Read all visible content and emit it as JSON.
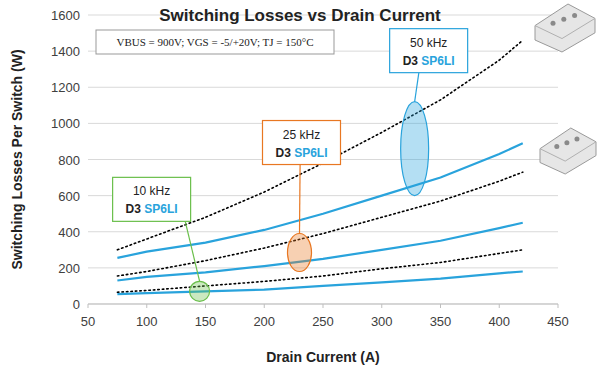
{
  "chart_data": {
    "type": "line",
    "title": "Switching Losses vs Drain Current",
    "subtitle": "VBUS = 900V; VGS = -5/+20V; TJ = 150°C",
    "x_label": "Drain Current (A)",
    "y_label": "Switching Losses Per Switch (W)",
    "x": [
      75,
      100,
      150,
      200,
      250,
      300,
      350,
      400,
      420
    ],
    "series": [
      {
        "color": "#000000",
        "line_style": "dotted",
        "values": [
          300,
          360,
          480,
          620,
          780,
          950,
          1130,
          1350,
          1460
        ]
      },
      {
        "color": "#000000",
        "line_style": "dotted",
        "values": [
          155,
          180,
          240,
          310,
          390,
          480,
          570,
          680,
          730
        ]
      },
      {
        "color": "#000000",
        "line_style": "dotted",
        "values": [
          65,
          75,
          100,
          125,
          155,
          195,
          230,
          280,
          300
        ]
      },
      {
        "color": "#29a3dc",
        "line_style": "solid",
        "values": [
          255,
          290,
          340,
          410,
          500,
          600,
          700,
          830,
          890
        ]
      },
      {
        "color": "#29a3dc",
        "line_style": "solid",
        "values": [
          130,
          150,
          175,
          210,
          250,
          300,
          350,
          420,
          450
        ]
      },
      {
        "color": "#29a3dc",
        "line_style": "solid",
        "values": [
          55,
          60,
          70,
          80,
          100,
          120,
          140,
          170,
          180
        ]
      }
    ],
    "annotations": [
      {
        "label": "10 kHz",
        "parts": [
          "D3",
          "SP6LI"
        ],
        "color": "#6abf4b",
        "x": 145,
        "y": 70
      },
      {
        "label": "25 kHz",
        "parts": [
          "D3",
          "SP6LI"
        ],
        "color": "#e87722",
        "x": 230,
        "y": 285
      },
      {
        "label": "50 kHz",
        "parts": [
          "D3",
          "SP6LI"
        ],
        "color": "#29a3dc",
        "x": 328,
        "y": 860
      }
    ],
    "xlim": [
      50,
      450
    ],
    "xticks": [
      50,
      100,
      150,
      200,
      250,
      300,
      350,
      400,
      450
    ],
    "ylim": [
      0,
      1600
    ],
    "yticks": [
      0,
      200,
      400,
      600,
      800,
      1000,
      1200,
      1400,
      1600
    ],
    "grid": true
  }
}
